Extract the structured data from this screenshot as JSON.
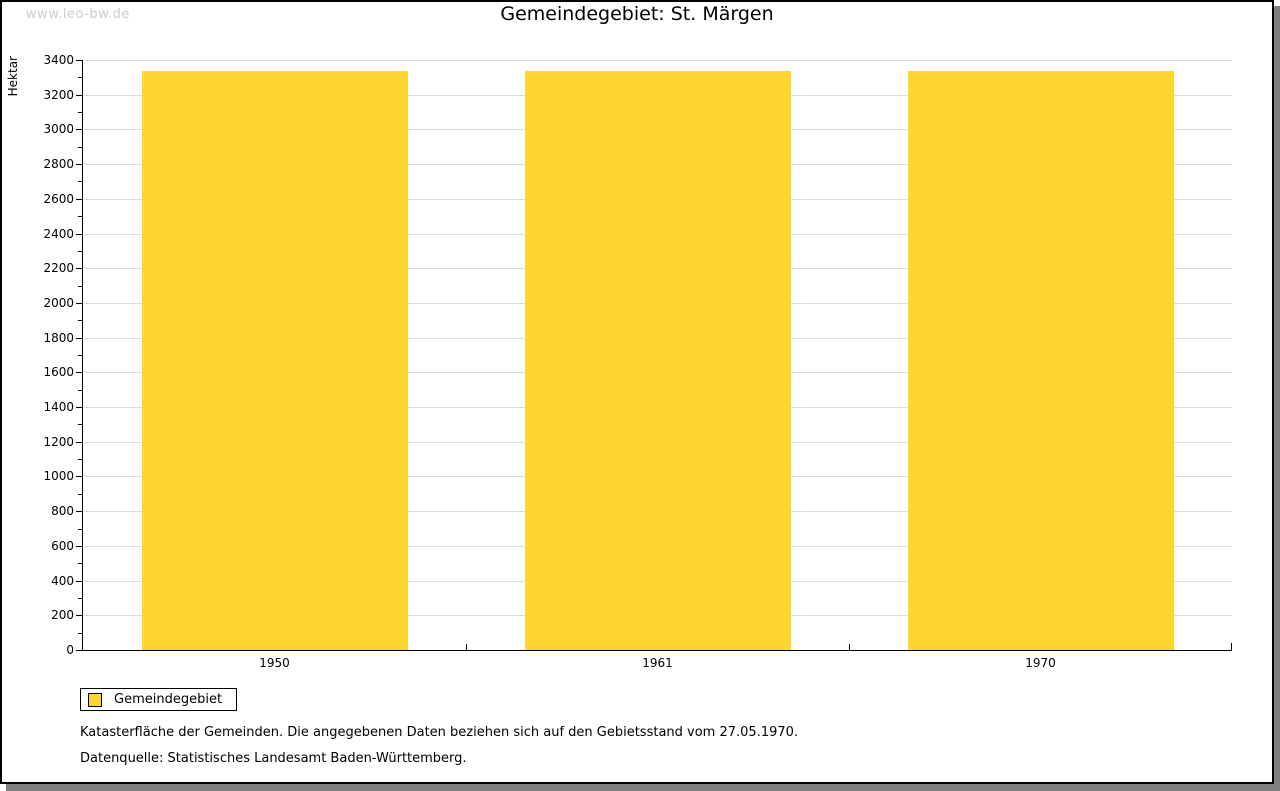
{
  "watermark": "www.leo-bw.de",
  "title": "Gemeindegebiet: St. Märgen",
  "y_axis": {
    "label": "Hektar"
  },
  "legend": {
    "label": "Gemeindegebiet"
  },
  "footer": {
    "line1": "Katasterfläche der Gemeinden. Die angegebenen Daten beziehen sich auf den Gebietsstand vom 27.05.1970.",
    "line2": "Datenquelle: Statistisches Landesamt Baden-Württemberg."
  },
  "colors": {
    "bar": "#fdd630",
    "grid": "#dcdcdc",
    "axis": "#000000",
    "watermark": "#cccccc",
    "shadow": "#7f7f7f"
  },
  "chart_data": {
    "type": "bar",
    "categories": [
      "1950",
      "1961",
      "1970"
    ],
    "series": [
      {
        "name": "Gemeindegebiet",
        "values": [
          3339,
          3339,
          3339
        ]
      }
    ],
    "title": "Gemeindegebiet: St. Märgen",
    "xlabel": "",
    "ylabel": "Hektar",
    "ylim": [
      0,
      3400
    ],
    "ytick_major": 200,
    "ytick_minor": 100,
    "grid": true,
    "legend_position": "bottom-left"
  }
}
